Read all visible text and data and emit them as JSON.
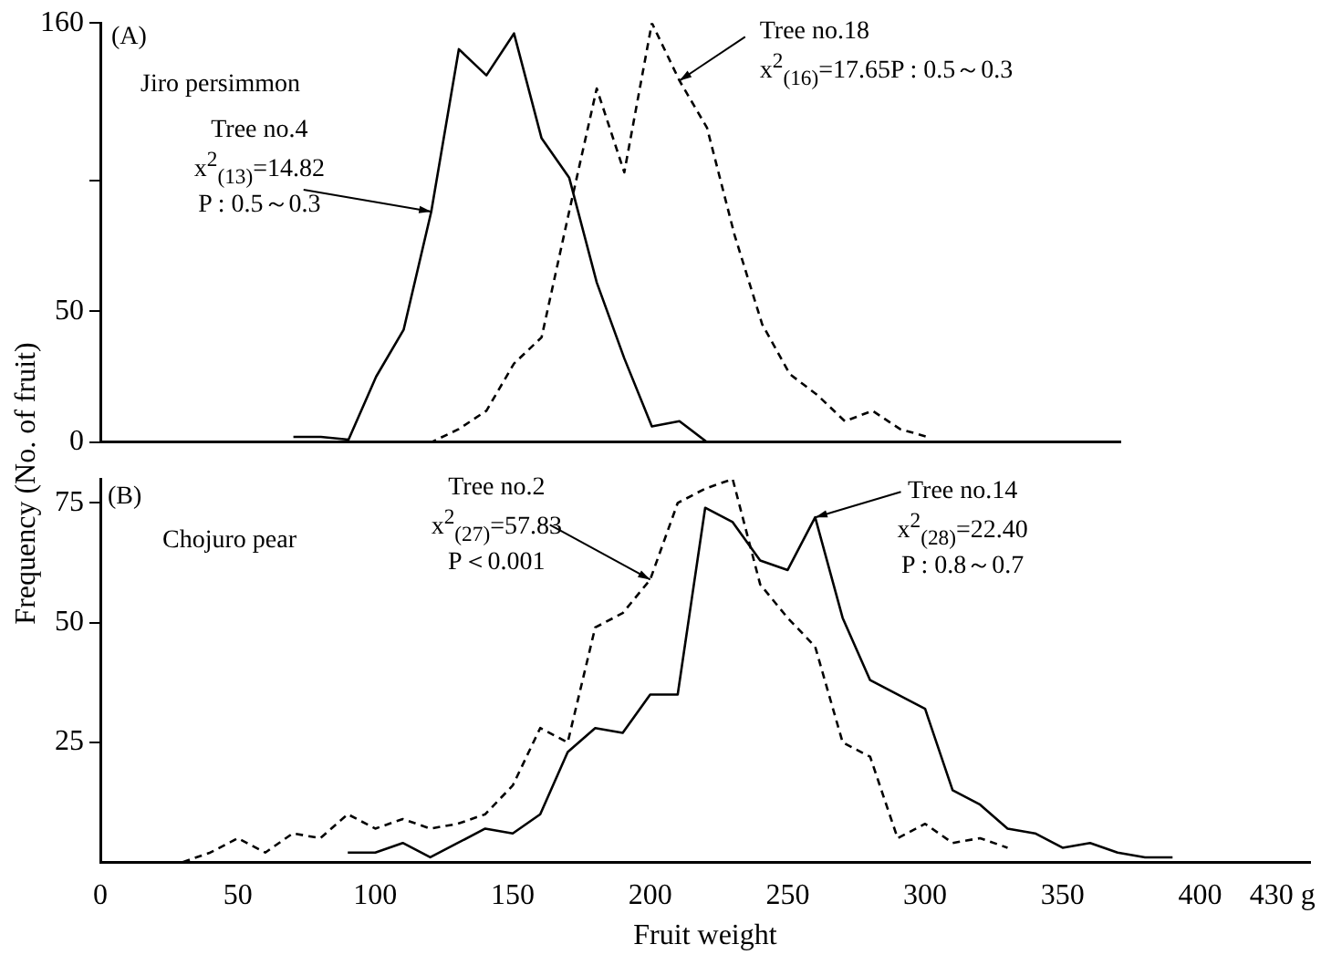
{
  "chart_data": [
    {
      "type": "line",
      "xlim": [
        0,
        370
      ],
      "xticks": [
        0,
        50,
        100,
        150,
        200,
        250,
        300,
        350
      ],
      "ylim": [
        0,
        160
      ],
      "yticks": [
        0,
        50,
        {
          "value": 100,
          "label": null
        },
        160
      ],
      "tick_labels": "y",
      "grid": false,
      "legend": false,
      "marker": "none",
      "series": [
        {
          "color": "#000000",
          "line_style": "solid",
          "x": [
            70,
            80,
            90,
            100,
            110,
            120,
            130,
            140,
            150,
            160,
            170,
            180,
            190,
            200,
            210,
            220
          ],
          "values": [
            2,
            2,
            1,
            25,
            43,
            88,
            150,
            140,
            156,
            116,
            101,
            61,
            32,
            6,
            8,
            0
          ]
        },
        {
          "color": "#000000",
          "line_style": "dashed",
          "x": [
            110,
            120,
            130,
            140,
            150,
            160,
            170,
            180,
            190,
            200,
            210,
            220,
            230,
            240,
            250,
            260,
            270,
            280,
            290,
            300
          ],
          "values": [
            0,
            0,
            5,
            12,
            30,
            40,
            88,
            135,
            103,
            160,
            138,
            120,
            79,
            45,
            26,
            18,
            8,
            12,
            5,
            2
          ]
        }
      ],
      "annotations": [
        "(A)",
        "Jiro persimmon",
        {
          "text": "Tree no.4\nx$^{2}$$_{(13)}$=14.82\nP : 0.5～0.3",
          "x": 120,
          "y": 88
        },
        {
          "text": "Tree no.18\nx$^{2}$$_{(16)}$=17.65P : 0.5～0.3",
          "x": 210,
          "y": 138
        }
      ]
    },
    {
      "type": "line",
      "xlabel": "Fruit weight",
      "ylabel": "Frequency (No. of fruit)",
      "xlim": [
        0,
        440
      ],
      "xticks": [
        0,
        50,
        100,
        150,
        200,
        250,
        300,
        350,
        400,
        {
          "value": 430,
          "label": "430 g"
        }
      ],
      "ylim": [
        0,
        80
      ],
      "yticks": [
        25,
        50,
        75
      ],
      "grid": false,
      "legend": false,
      "marker": "none",
      "series": [
        {
          "color": "#000000",
          "line_style": "dashed",
          "x": [
            30,
            40,
            50,
            60,
            70,
            80,
            90,
            100,
            110,
            120,
            130,
            140,
            150,
            160,
            170,
            180,
            190,
            200,
            210,
            220,
            230,
            240,
            250,
            260,
            270,
            280,
            290,
            300,
            310,
            320,
            330
          ],
          "values": [
            0,
            2,
            5,
            2,
            6,
            5,
            10,
            7,
            9,
            7,
            8,
            10,
            16,
            28,
            25,
            49,
            52,
            59,
            75,
            78,
            80,
            58,
            51,
            45,
            25,
            22,
            5,
            8,
            4,
            5,
            3
          ]
        },
        {
          "color": "#000000",
          "line_style": "solid",
          "x": [
            90,
            100,
            110,
            120,
            130,
            140,
            150,
            160,
            170,
            180,
            190,
            200,
            210,
            220,
            230,
            240,
            250,
            260,
            270,
            280,
            290,
            300,
            310,
            320,
            330,
            340,
            350,
            360,
            370,
            380,
            390
          ],
          "values": [
            2,
            2,
            4,
            1,
            4,
            7,
            6,
            10,
            23,
            28,
            27,
            35,
            35,
            74,
            71,
            63,
            61,
            72,
            51,
            38,
            35,
            32,
            15,
            12,
            7,
            6,
            3,
            4,
            2,
            1,
            1
          ]
        }
      ],
      "annotations": [
        "(B)",
        "Chojuro pear",
        {
          "text": "Tree no.2\nx$^{2}$$_{(27)}$=57.83\nP＜0.001",
          "x": 200,
          "y": 59
        },
        {
          "text": "Tree no.14\nx$^{2}$$_{(28)}$=22.40\nP : 0.8～0.7",
          "x": 260,
          "y": 72
        }
      ]
    }
  ]
}
